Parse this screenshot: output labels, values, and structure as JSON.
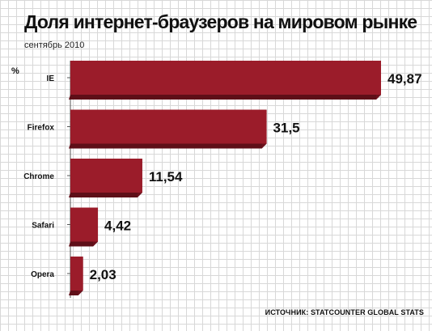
{
  "title": "Доля интернет-браузеров на мировом рынке",
  "subtitle": "сентябрь 2010",
  "source": "ИСТОЧНИК: STATCOUNTER GLOBAL STATS",
  "chart_data": {
    "type": "bar",
    "orientation": "horizontal",
    "unit_label": "%",
    "categories": [
      "IE",
      "Firefox",
      "Chrome",
      "Safari",
      "Opera"
    ],
    "values": [
      49.87,
      31.5,
      11.54,
      4.42,
      2.03
    ],
    "value_labels": [
      "49,87",
      "31,5",
      "11,54",
      "4,42",
      "2,03"
    ],
    "xlim": [
      0,
      50
    ],
    "bar_color": "#9b1c2a",
    "bar_shadow_color": "#5e0f18",
    "grid": true
  }
}
